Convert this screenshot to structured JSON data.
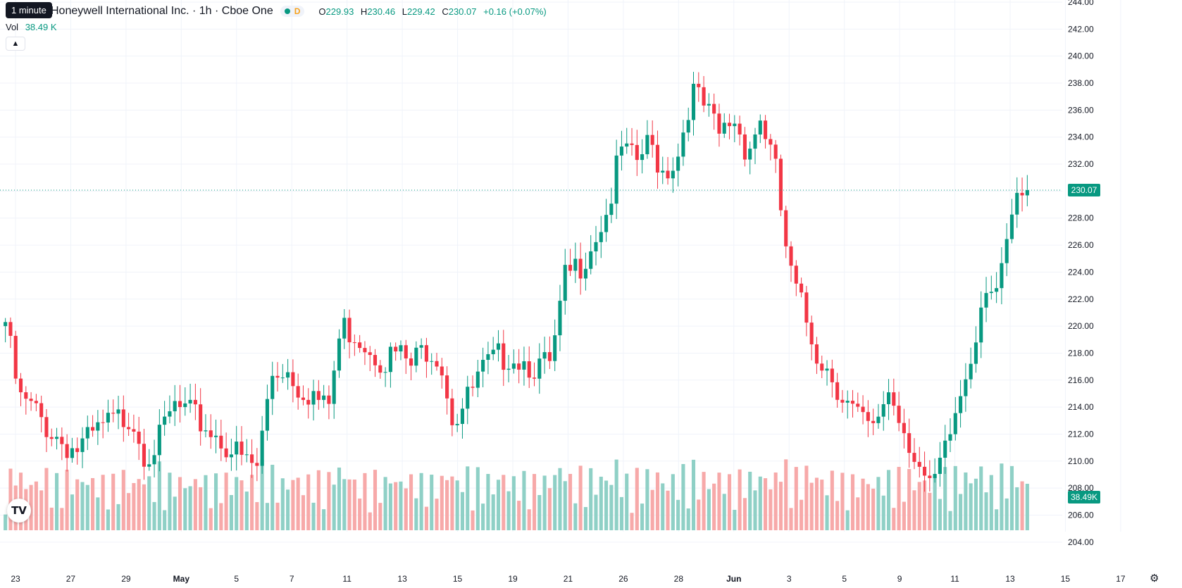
{
  "tooltip": "1 minute",
  "header": {
    "title": "Honeywell International Inc. · 1h · Cboe One",
    "market_status_icon": "market-open-dot",
    "delay_badge": "D",
    "ohlc": {
      "o_label": "O",
      "o": "229.93",
      "h_label": "H",
      "h": "230.46",
      "l_label": "L",
      "l": "229.42",
      "c_label": "C",
      "c": "230.07",
      "change": "+0.16 (+0.07%)"
    }
  },
  "volume_legend": {
    "label": "Vol",
    "value": "38.49 K"
  },
  "collapse_icon": "chevron-up-icon",
  "logo": "TV",
  "settings_icon": "gear-icon",
  "colors": {
    "up": "#089981",
    "down": "#f23645",
    "up_vol": "#8fd0c6",
    "down_vol": "#f7a9a9",
    "grid": "#f0f3fa",
    "axis_text": "#131722",
    "last_price": "#089981"
  },
  "chart_data": {
    "type": "candlestick",
    "interval": "1h",
    "last_price": "230.07",
    "last_volume": "38.49K",
    "price_axis": {
      "min": 203,
      "max": 244,
      "ticks": [
        "244.00",
        "242.00",
        "240.00",
        "238.00",
        "236.00",
        "234.00",
        "232.00",
        "230.00",
        "228.00",
        "226.00",
        "224.00",
        "222.00",
        "220.00",
        "218.00",
        "216.00",
        "214.00",
        "212.00",
        "210.00",
        "208.00",
        "206.00",
        "204.00"
      ]
    },
    "x_labels": [
      "23",
      "27",
      "29",
      "May",
      "5",
      "7",
      "11",
      "13",
      "15",
      "19",
      "21",
      "26",
      "28",
      "Jun",
      "3",
      "5",
      "9",
      "11",
      "13",
      "15",
      "17"
    ],
    "close_path": [
      220.3,
      214.5,
      213.8,
      212.5,
      211.5,
      210.8,
      211.5,
      212.5,
      213.0,
      213.5,
      210.5,
      211.5,
      214.0,
      213.5,
      212.8,
      212.0,
      211.0,
      210.0,
      209.5,
      216.5,
      217.0,
      215.5,
      215.0,
      213.5,
      220.0,
      219.5,
      218.5,
      217.5,
      218.0,
      217.0,
      218.5,
      218.0,
      213.0,
      214.5,
      216.5,
      217.5,
      218.0,
      217.5,
      217.0,
      217.0,
      223.5,
      224.5,
      226.5,
      228.5,
      233.0,
      232.0,
      233.5,
      231.5,
      232.5,
      237.5,
      236.0,
      234.0,
      235.5,
      233.0,
      235.5,
      231.5,
      224.0,
      221.0,
      218.0,
      216.5,
      214.5,
      213.0,
      212.0,
      215.5,
      213.0,
      210.5,
      207.5,
      210.0,
      214.0,
      218.0,
      223.5,
      222.5,
      228.5,
      230.07
    ]
  }
}
